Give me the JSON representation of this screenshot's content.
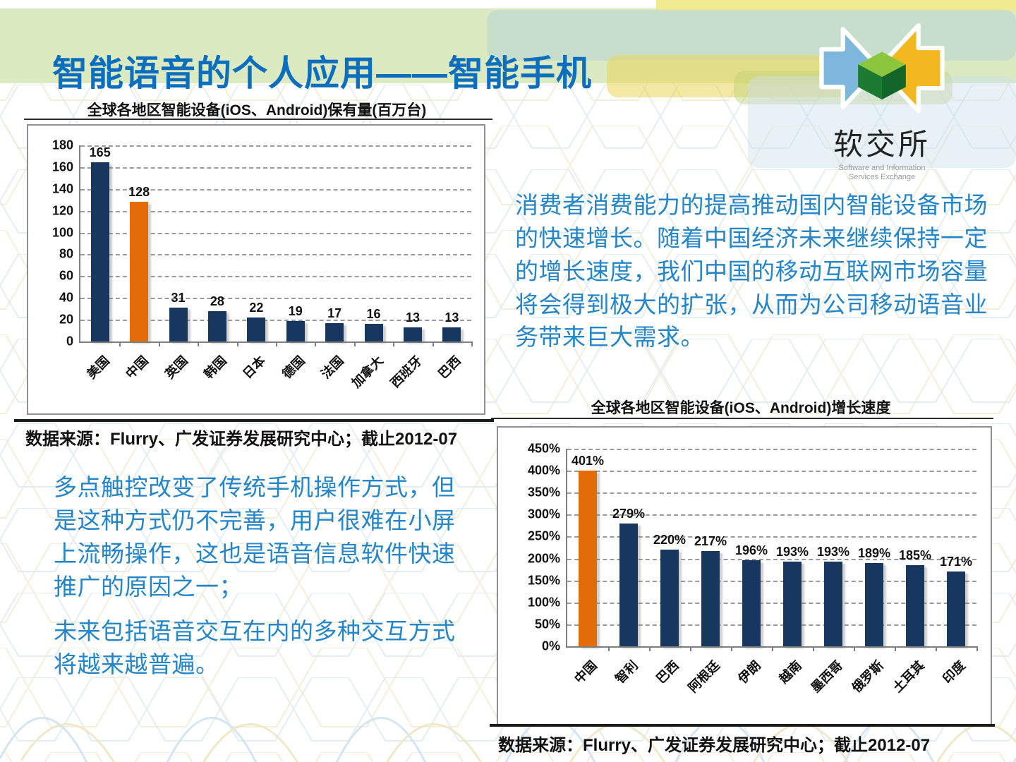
{
  "slide": {
    "title": "智能语音的个人应用——智能手机"
  },
  "logo": {
    "name": "软交所",
    "subtitle_line1": "Software and Information",
    "subtitle_line2": "Services Exchange"
  },
  "paragraphs": {
    "right": "消费者消费能力的提高推动国内智能设备市场的快速增长。随着中国经济未来继续保持一定的增长速度，我们中国的移动互联网市场容量将会得到极大的扩张，从而为公司移动语音业务带来巨大需求。",
    "left1": "多点触控改变了传统手机操作方式，但是这种方式仍不完善，用户很难在小屏上流畅操作，这也是语音信息软件快速推广的原因之一；",
    "left2": "未来包括语音交互在内的多种交互方式将越来越普遍。"
  },
  "colors": {
    "bar_navy": "#17375E",
    "bar_orange": "#E36C09",
    "title_blue": "#0d6ebd",
    "body_blue": "#2486c8"
  },
  "chart_data": [
    {
      "type": "bar",
      "title": "全球各地区智能设备(iOS、Android)保有量(百万台)",
      "categories": [
        "美国",
        "中国",
        "英国",
        "韩国",
        "日本",
        "德国",
        "法国",
        "加拿大",
        "西班牙",
        "巴西"
      ],
      "values": [
        165,
        128,
        31,
        28,
        22,
        19,
        17,
        16,
        13,
        13
      ],
      "value_labels": [
        "165",
        "128",
        "31",
        "28",
        "22",
        "19",
        "17",
        "16",
        "13",
        "13"
      ],
      "ylim": [
        0,
        180
      ],
      "ytick_labels": [
        "0",
        "20",
        "40",
        "60",
        "80",
        "100",
        "120",
        "140",
        "160",
        "180"
      ],
      "highlight_index": 1,
      "grid": true,
      "legend": "none",
      "source": "数据来源：Flurry、广发证券发展研究中心；截止2012-07"
    },
    {
      "type": "bar",
      "title": "全球各地区智能设备(iOS、Android)增长速度",
      "categories": [
        "中国",
        "智利",
        "巴西",
        "阿根廷",
        "伊朗",
        "越南",
        "墨西哥",
        "俄罗斯",
        "土耳其",
        "印度"
      ],
      "values": [
        401,
        279,
        220,
        217,
        196,
        193,
        193,
        189,
        185,
        171
      ],
      "value_labels": [
        "401%",
        "279%",
        "220%",
        "217%",
        "196%",
        "193%",
        "193%",
        "189%",
        "185%",
        "171%"
      ],
      "ylim": [
        0,
        450
      ],
      "ytick_labels": [
        "0%",
        "50%",
        "100%",
        "150%",
        "200%",
        "250%",
        "300%",
        "350%",
        "400%",
        "450%"
      ],
      "highlight_index": 0,
      "grid": true,
      "legend": "none",
      "source": "数据来源：Flurry、广发证券发展研究中心；截止2012-07"
    }
  ]
}
